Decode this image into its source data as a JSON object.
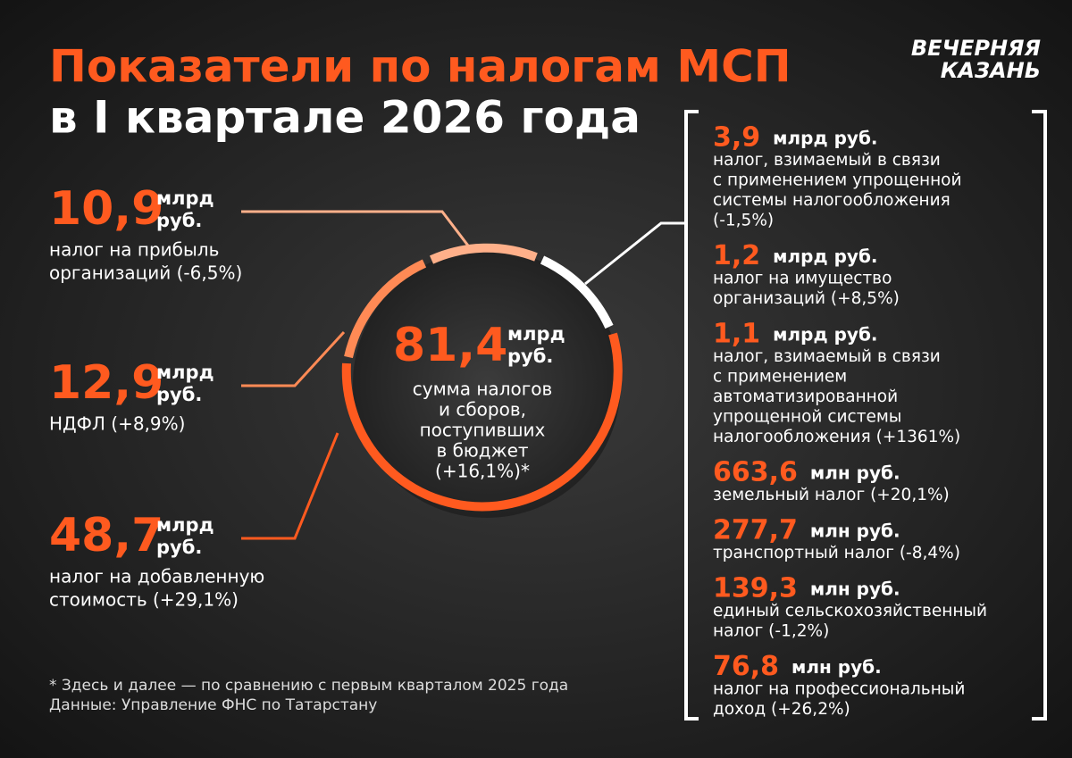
{
  "header": {
    "title": "Показатели по налогам МСП",
    "subtitle": "в I квартале 2026 года",
    "logo": [
      "ВЕЧЕРНЯЯ",
      "КАЗАНЬ"
    ]
  },
  "left_items": [
    {
      "value": "10,9",
      "unit": [
        "млрд",
        "руб."
      ],
      "description": [
        "налог на прибыль",
        "организаций (-6,5%)"
      ]
    },
    {
      "value": "12,9",
      "unit": [
        "млрд",
        "руб."
      ],
      "description": [
        "НДФЛ (+8,9%)"
      ]
    },
    {
      "value": "48,7",
      "unit": [
        "млрд",
        "руб."
      ],
      "description": [
        "налог на добавленную",
        "стоимость (+29,1%)"
      ]
    }
  ],
  "center": {
    "value": "81,4",
    "unit": [
      "млрд",
      "руб."
    ],
    "description": [
      "сумма налогов",
      "и сборов,",
      "поступивших",
      "в бюджет",
      "(+16,1%)*"
    ]
  },
  "right_items": [
    {
      "value": "3,9",
      "unit": "млрд руб.",
      "description": [
        "налог, взимаемый в связи",
        "с применением упрощенной",
        "системы налогообложения",
        "(-1,5%)"
      ]
    },
    {
      "value": "1,2",
      "unit": "млрд руб.",
      "description": [
        "налог на имущество",
        "организаций (+8,5%)"
      ]
    },
    {
      "value": "1,1",
      "unit": "млрд руб.",
      "description": [
        "налог, взимаемый в связи",
        "с применением",
        "автоматизированной",
        "упрощенной системы",
        "налогообложения (+1361%)"
      ]
    },
    {
      "value": "663,6",
      "unit": "млн руб.",
      "description": [
        "земельный налог (+20,1%)"
      ]
    },
    {
      "value": "277,7",
      "unit": "млн руб.",
      "description": [
        "транспортный налог (-8,4%)"
      ]
    },
    {
      "value": "139,3",
      "unit": "млн руб.",
      "description": [
        "единый сельскохозяйственный",
        "налог (-1,2%)"
      ]
    },
    {
      "value": "76,8",
      "unit": "млн руб.",
      "description": [
        "налог на профессиональный",
        "доход (+26,2%)"
      ]
    }
  ],
  "footnotes": [
    "* Здесь и далее — по сравнению с первым кварталом 2025 года",
    "Данные: Управление ФНС по Татарстану"
  ]
}
